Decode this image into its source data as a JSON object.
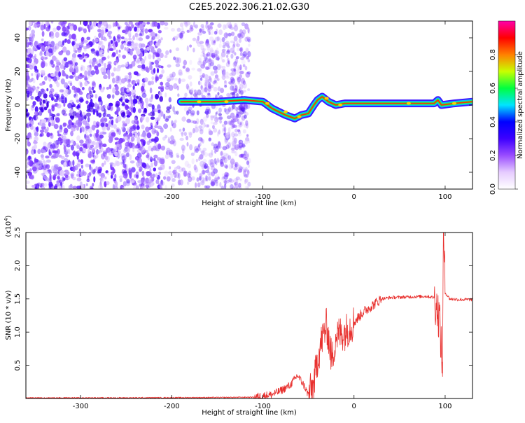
{
  "title": "C2E5.2022.306.21.02.G30",
  "chart_data": [
    {
      "type": "heatmap",
      "xlabel": "Height of straight line (km)",
      "ylabel": "Frequency (Hz)",
      "xlim": [
        -360,
        130
      ],
      "ylim": [
        -50,
        50
      ],
      "x_ticks": [
        -300,
        -200,
        -100,
        0,
        100
      ],
      "y_ticks": [
        -40,
        -20,
        0,
        20,
        40
      ],
      "colorbar": {
        "label": "Normalized spectral amplitude",
        "range": [
          0,
          1
        ],
        "ticks": [
          "0.0",
          "0.2",
          "0.4",
          "0.6",
          "0.8"
        ],
        "colors": [
          "#ffffff",
          "#e6ccff",
          "#9a4dff",
          "#3d00ff",
          "#0000ff",
          "#00e5ff",
          "#00ff40",
          "#c8ff00",
          "#ff8000",
          "#ff0000",
          "#ff00aa"
        ]
      },
      "centerline": [
        {
          "x": -190,
          "y": 2
        },
        {
          "x": -150,
          "y": 2
        },
        {
          "x": -120,
          "y": 3
        },
        {
          "x": -100,
          "y": 2
        },
        {
          "x": -90,
          "y": -2
        },
        {
          "x": -75,
          "y": -6
        },
        {
          "x": -65,
          "y": -8
        },
        {
          "x": -58,
          "y": -6
        },
        {
          "x": -50,
          "y": -5
        },
        {
          "x": -44,
          "y": 0
        },
        {
          "x": -40,
          "y": 3
        },
        {
          "x": -35,
          "y": 5
        },
        {
          "x": -28,
          "y": 2
        },
        {
          "x": -20,
          "y": 0
        },
        {
          "x": -10,
          "y": 1
        },
        {
          "x": 0,
          "y": 1
        },
        {
          "x": 50,
          "y": 1
        },
        {
          "x": 88,
          "y": 1
        },
        {
          "x": 92,
          "y": 3
        },
        {
          "x": 96,
          "y": 0
        },
        {
          "x": 110,
          "y": 1
        },
        {
          "x": 130,
          "y": 2
        }
      ]
    },
    {
      "type": "line",
      "xlabel": "Height of straight line (km)",
      "ylabel": "SNR (10 * v/v)",
      "multiplier": "(x10",
      "multiplier_exp": "4",
      "multiplier_close": ")",
      "xlim": [
        -360,
        130
      ],
      "ylim": [
        0,
        2.5
      ],
      "x_ticks": [
        -300,
        -200,
        -100,
        0,
        100
      ],
      "y_ticks": [
        "0.5",
        "1.0",
        "1.5",
        "2.0",
        "2.5"
      ],
      "color": "#e8302e",
      "series": [
        {
          "values": [
            {
              "x": -360,
              "y": 0.01
            },
            {
              "x": -250,
              "y": 0.01
            },
            {
              "x": -150,
              "y": 0.015
            },
            {
              "x": -110,
              "y": 0.02
            },
            {
              "x": -90,
              "y": 0.06
            },
            {
              "x": -80,
              "y": 0.12
            },
            {
              "x": -70,
              "y": 0.2
            },
            {
              "x": -62,
              "y": 0.35
            },
            {
              "x": -55,
              "y": 0.2
            },
            {
              "x": -50,
              "y": 0.05
            },
            {
              "x": -44,
              "y": 0.2
            },
            {
              "x": -40,
              "y": 0.6
            },
            {
              "x": -35,
              "y": 0.9
            },
            {
              "x": -30,
              "y": 1.1
            },
            {
              "x": -24,
              "y": 0.55
            },
            {
              "x": -20,
              "y": 0.95
            },
            {
              "x": -10,
              "y": 1.0
            },
            {
              "x": 0,
              "y": 1.15
            },
            {
              "x": 10,
              "y": 1.3
            },
            {
              "x": 20,
              "y": 1.4
            },
            {
              "x": 30,
              "y": 1.5
            },
            {
              "x": 40,
              "y": 1.52
            },
            {
              "x": 60,
              "y": 1.53
            },
            {
              "x": 80,
              "y": 1.54
            },
            {
              "x": 88,
              "y": 1.52
            },
            {
              "x": 94,
              "y": 1.2
            },
            {
              "x": 97,
              "y": 0.38
            },
            {
              "x": 98,
              "y": 2.4
            },
            {
              "x": 99,
              "y": 2.1
            },
            {
              "x": 100,
              "y": 1.6
            },
            {
              "x": 105,
              "y": 1.5
            },
            {
              "x": 115,
              "y": 1.49
            },
            {
              "x": 130,
              "y": 1.49
            }
          ]
        }
      ]
    }
  ]
}
